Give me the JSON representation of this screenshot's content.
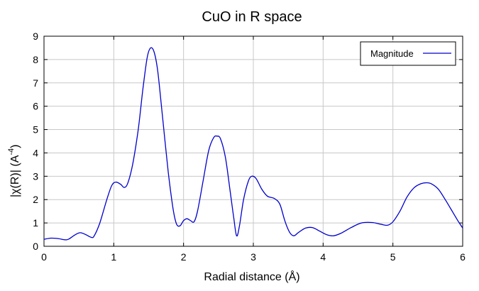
{
  "chart_data": {
    "type": "line",
    "title": "CuO in R space",
    "xlabel": "Radial distance    (Å)",
    "ylabel": "|χ(R)|    (A",
    "ylabel_exp": "-4",
    "ylabel_close": ")",
    "xlim": [
      0,
      6
    ],
    "ylim": [
      0,
      9
    ],
    "xticks": [
      0,
      1,
      2,
      3,
      4,
      5,
      6
    ],
    "yticks": [
      0,
      1,
      2,
      3,
      4,
      5,
      6,
      7,
      8,
      9
    ],
    "grid": true,
    "legend_position": "top-right",
    "series": [
      {
        "name": "Magnitude",
        "color": "#0000cc",
        "points": [
          [
            0.0,
            0.3
          ],
          [
            0.1,
            0.35
          ],
          [
            0.2,
            0.33
          ],
          [
            0.3,
            0.28
          ],
          [
            0.35,
            0.3
          ],
          [
            0.45,
            0.5
          ],
          [
            0.52,
            0.58
          ],
          [
            0.6,
            0.5
          ],
          [
            0.68,
            0.38
          ],
          [
            0.72,
            0.45
          ],
          [
            0.8,
            1.0
          ],
          [
            0.9,
            2.0
          ],
          [
            0.97,
            2.6
          ],
          [
            1.03,
            2.75
          ],
          [
            1.1,
            2.65
          ],
          [
            1.15,
            2.52
          ],
          [
            1.2,
            2.7
          ],
          [
            1.27,
            3.5
          ],
          [
            1.35,
            5.0
          ],
          [
            1.42,
            6.8
          ],
          [
            1.48,
            8.1
          ],
          [
            1.53,
            8.5
          ],
          [
            1.58,
            8.3
          ],
          [
            1.63,
            7.5
          ],
          [
            1.7,
            5.5
          ],
          [
            1.78,
            3.2
          ],
          [
            1.85,
            1.6
          ],
          [
            1.9,
            0.95
          ],
          [
            1.95,
            0.88
          ],
          [
            2.0,
            1.1
          ],
          [
            2.05,
            1.18
          ],
          [
            2.1,
            1.1
          ],
          [
            2.15,
            1.05
          ],
          [
            2.2,
            1.5
          ],
          [
            2.28,
            2.8
          ],
          [
            2.36,
            4.1
          ],
          [
            2.43,
            4.65
          ],
          [
            2.48,
            4.72
          ],
          [
            2.53,
            4.6
          ],
          [
            2.6,
            3.8
          ],
          [
            2.67,
            2.3
          ],
          [
            2.72,
            1.2
          ],
          [
            2.76,
            0.45
          ],
          [
            2.8,
            0.85
          ],
          [
            2.86,
            2.0
          ],
          [
            2.93,
            2.8
          ],
          [
            2.98,
            3.0
          ],
          [
            3.04,
            2.9
          ],
          [
            3.12,
            2.45
          ],
          [
            3.2,
            2.15
          ],
          [
            3.3,
            2.05
          ],
          [
            3.38,
            1.8
          ],
          [
            3.45,
            1.1
          ],
          [
            3.52,
            0.6
          ],
          [
            3.58,
            0.45
          ],
          [
            3.65,
            0.6
          ],
          [
            3.75,
            0.78
          ],
          [
            3.85,
            0.8
          ],
          [
            3.95,
            0.65
          ],
          [
            4.05,
            0.5
          ],
          [
            4.15,
            0.45
          ],
          [
            4.25,
            0.55
          ],
          [
            4.4,
            0.8
          ],
          [
            4.55,
            1.0
          ],
          [
            4.7,
            1.02
          ],
          [
            4.82,
            0.95
          ],
          [
            4.92,
            0.9
          ],
          [
            5.0,
            1.05
          ],
          [
            5.1,
            1.5
          ],
          [
            5.2,
            2.1
          ],
          [
            5.3,
            2.5
          ],
          [
            5.4,
            2.68
          ],
          [
            5.48,
            2.72
          ],
          [
            5.55,
            2.68
          ],
          [
            5.65,
            2.45
          ],
          [
            5.75,
            2.0
          ],
          [
            5.85,
            1.5
          ],
          [
            5.93,
            1.1
          ],
          [
            6.0,
            0.78
          ]
        ]
      }
    ]
  }
}
